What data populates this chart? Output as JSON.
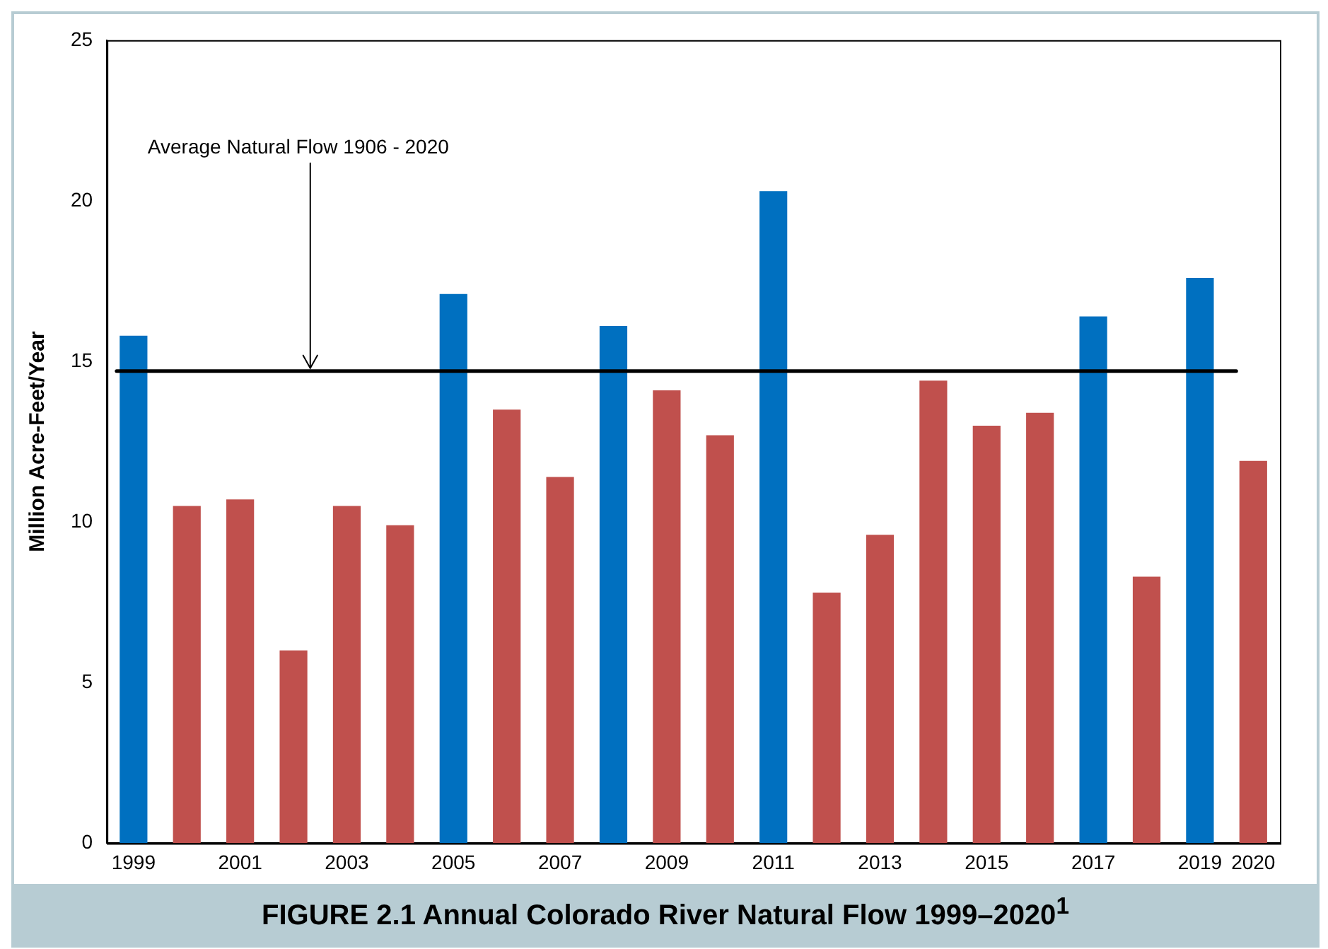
{
  "chart_data": {
    "type": "bar",
    "title": "FIGURE 2.1   Annual Colorado River Natural Flow 1999–2020$^{1}$",
    "ylabel": "Million Acre-Feet/Year",
    "categories": [
      "1999",
      null,
      "2001",
      null,
      "2003",
      null,
      "2005",
      null,
      "2007",
      null,
      "2009",
      null,
      "2011",
      null,
      "2013",
      null,
      "2015",
      null,
      "2017",
      null,
      "2019",
      "2020"
    ],
    "values": [
      15.8,
      10.5,
      10.7,
      6.0,
      10.5,
      9.9,
      17.1,
      13.5,
      11.4,
      16.1,
      14.1,
      12.7,
      20.3,
      7.8,
      9.6,
      14.4,
      13.0,
      13.4,
      16.4,
      8.3,
      17.6,
      11.9
    ],
    "colors": [
      "#0070c0",
      "#c0504d",
      "#c0504d",
      "#c0504d",
      "#c0504d",
      "#c0504d",
      "#0070c0",
      "#c0504d",
      "#c0504d",
      "#0070c0",
      "#c0504d",
      "#c0504d",
      "#0070c0",
      "#c0504d",
      "#c0504d",
      "#c0504d",
      "#c0504d",
      "#c0504d",
      "#0070c0",
      "#c0504d",
      "#0070c0",
      "#c0504d"
    ],
    "ylim": [
      0,
      25
    ],
    "yticks": [
      0,
      5,
      10,
      15,
      20,
      25
    ],
    "grid": false,
    "legend": false,
    "ref_lines": [
      {
        "axis": "y",
        "value": 14.7,
        "label": "Average Natural Flow 1906 - 2020",
        "color": "#000000"
      }
    ]
  }
}
